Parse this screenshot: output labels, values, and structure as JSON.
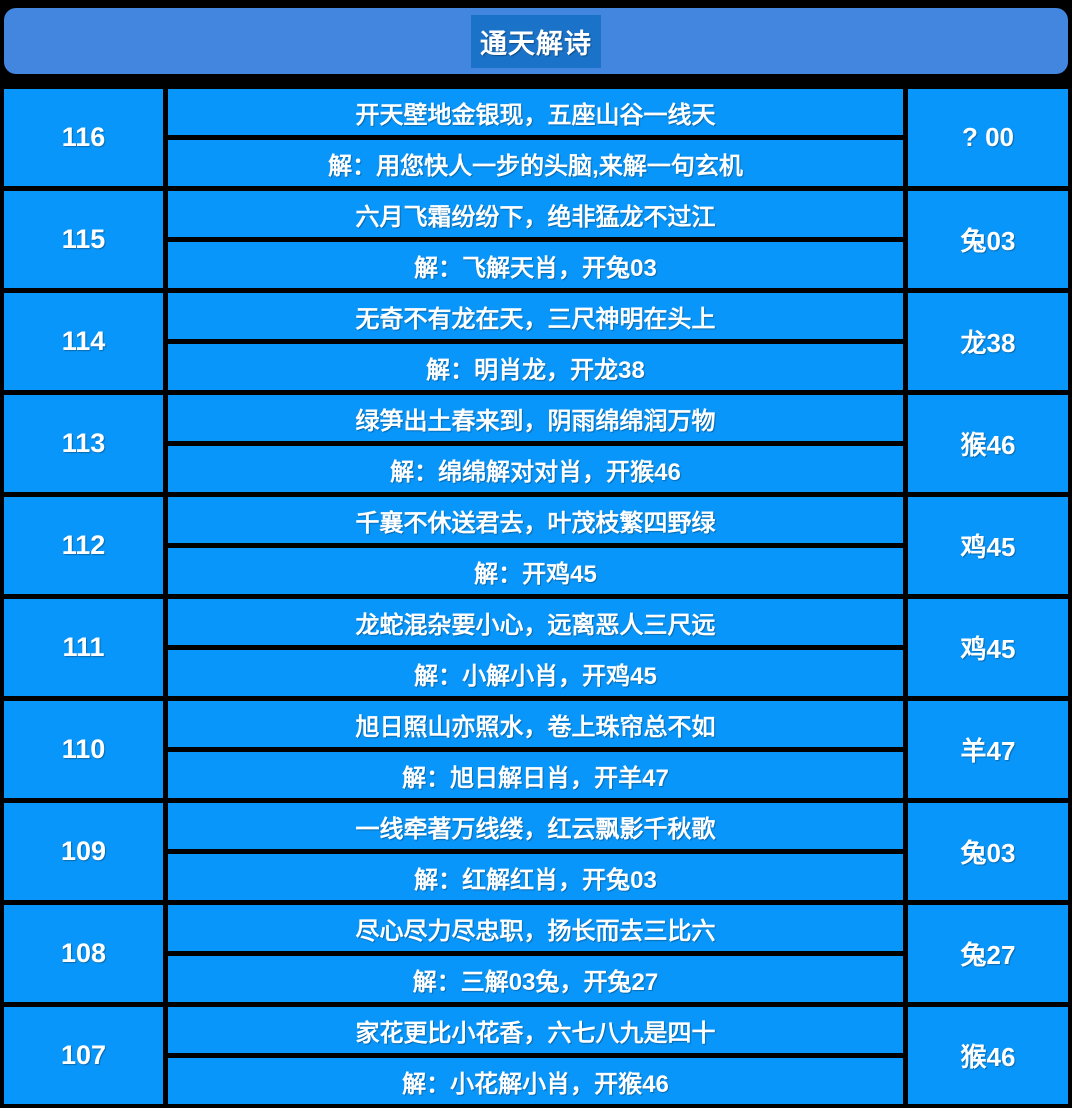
{
  "header": {
    "title": "通天解诗"
  },
  "colors": {
    "cell_blue": "#0996fa",
    "header_blue": "#4286e0",
    "badge_blue": "#1a73c9",
    "background": "#000000",
    "text": "#ffffff"
  },
  "rows": [
    {
      "id": "116",
      "poem": "开天壁地金银现，五座山谷一线天",
      "jie": "解：用您快人一步的头脑,来解一句玄机",
      "result": "? 00"
    },
    {
      "id": "115",
      "poem": "六月飞霜纷纷下，绝非猛龙不过江",
      "jie": "解：飞解天肖，开兔03",
      "result": "兔03"
    },
    {
      "id": "114",
      "poem": "无奇不有龙在天，三尺神明在头上",
      "jie": "解：明肖龙，开龙38",
      "result": "龙38"
    },
    {
      "id": "113",
      "poem": "绿笋出土春来到，阴雨绵绵润万物",
      "jie": "解：绵绵解对对肖，开猴46",
      "result": "猴46"
    },
    {
      "id": "112",
      "poem": "千襄不休送君去，叶茂枝繁四野绿",
      "jie": "解：开鸡45",
      "result": "鸡45"
    },
    {
      "id": "111",
      "poem": "龙蛇混杂要小心，远离恶人三尺远",
      "jie": "解：小解小肖，开鸡45",
      "result": "鸡45"
    },
    {
      "id": "110",
      "poem": "旭日照山亦照水，卷上珠帘总不如",
      "jie": "解：旭日解日肖，开羊47",
      "result": "羊47"
    },
    {
      "id": "109",
      "poem": "一线牵著万线缕，红云飘影千秋歌",
      "jie": "解：红解红肖，开兔03",
      "result": "兔03"
    },
    {
      "id": "108",
      "poem": "尽心尽力尽忠职，扬长而去三比六",
      "jie": "解：三解03兔，开兔27",
      "result": "兔27"
    },
    {
      "id": "107",
      "poem": "家花更比小花香，六七八九是四十",
      "jie": "解：小花解小肖，开猴46",
      "result": "猴46"
    }
  ]
}
